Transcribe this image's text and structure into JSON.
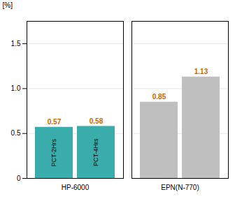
{
  "chart_data": {
    "type": "bar",
    "categories": [
      "HP-6000",
      "EPN(N-770)"
    ],
    "series": [
      {
        "name": "PCT-2Hrs",
        "values": [
          0.57,
          0.85
        ],
        "colors": [
          "#3aacab",
          "#c0bfbf"
        ]
      },
      {
        "name": "PCT-4Hrs",
        "values": [
          0.58,
          1.13
        ],
        "colors": [
          "#3aacab",
          "#c0bfbf"
        ]
      }
    ],
    "ylabel": "[%]",
    "ylim": [
      0,
      1.75
    ],
    "yticks": [
      0,
      0.5,
      {
        "value": 1.0,
        "label": "1.0"
      },
      1.5
    ],
    "grid": true,
    "data_labels": true
  }
}
